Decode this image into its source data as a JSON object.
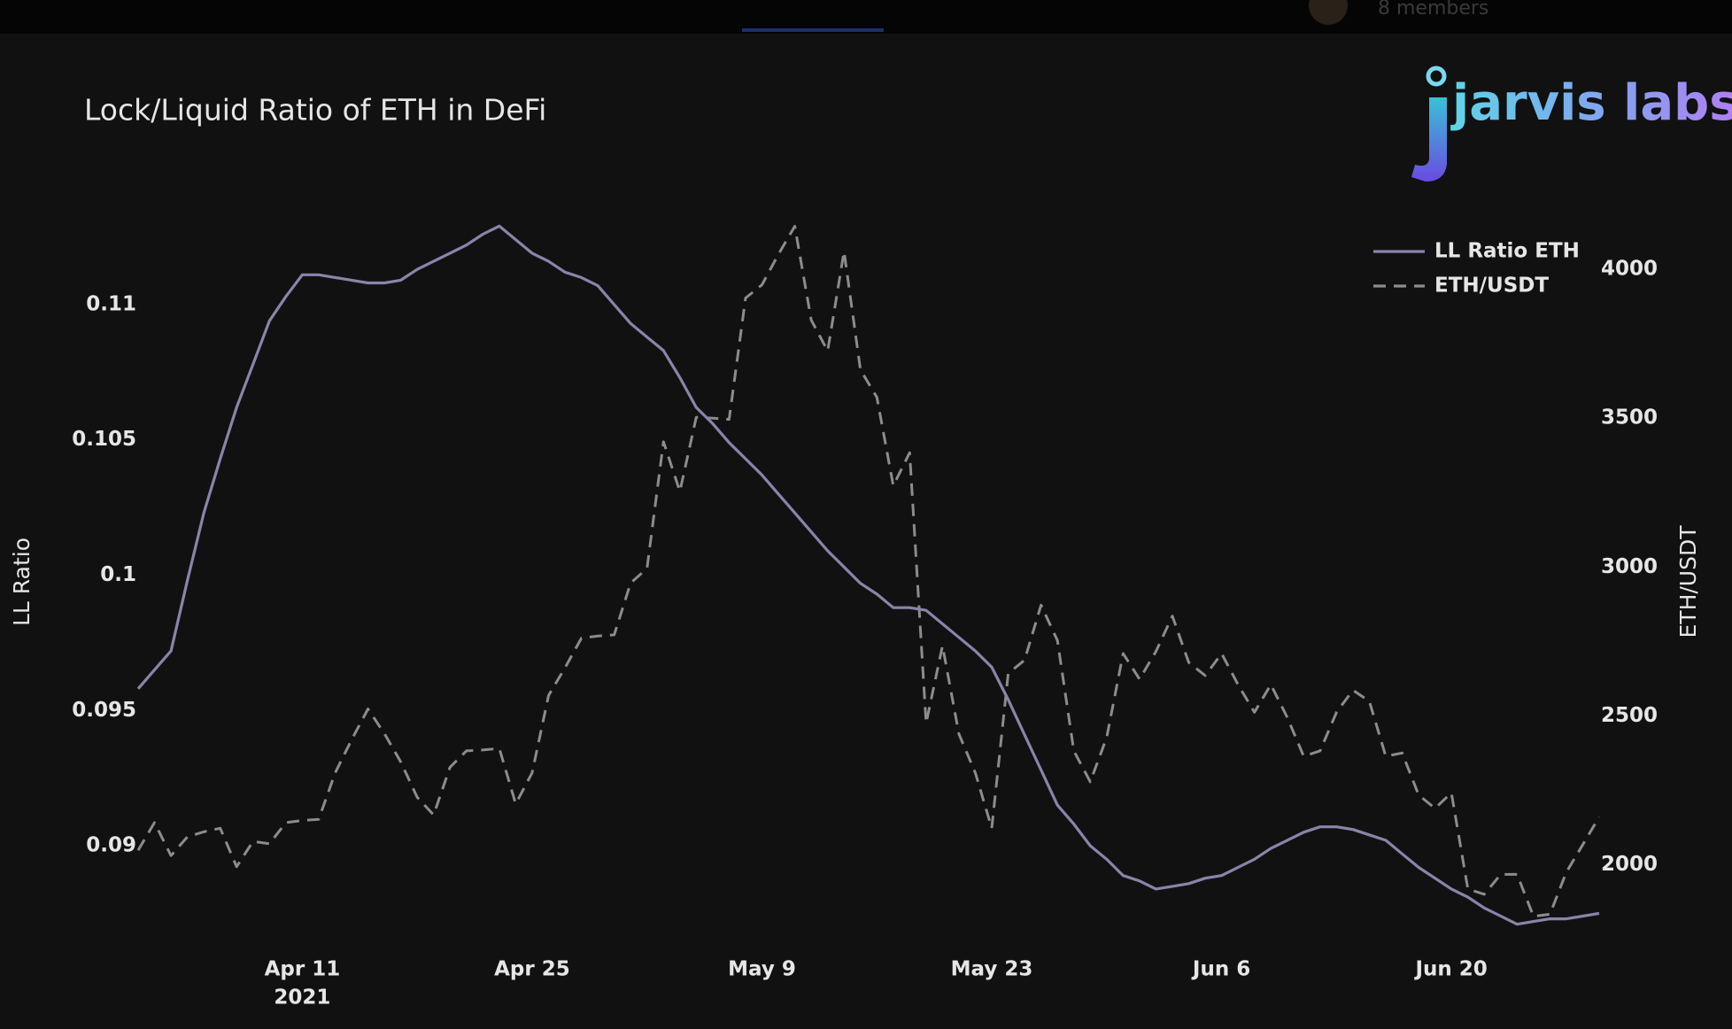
{
  "top_bar": {
    "members": "8 members"
  },
  "logo": "jarvis labs",
  "chart_data": {
    "type": "line",
    "title": "Lock/Liquid Ratio of ETH in DeFi",
    "y_label": "LL Ratio",
    "y2_label": "ETH/USDT",
    "x_year_label": "2021",
    "legend": "top-right",
    "x": [
      "2021-04-01",
      "2021-04-02",
      "2021-04-03",
      "2021-04-04",
      "2021-04-05",
      "2021-04-06",
      "2021-04-07",
      "2021-04-08",
      "2021-04-09",
      "2021-04-10",
      "2021-04-11",
      "2021-04-12",
      "2021-04-13",
      "2021-04-14",
      "2021-04-15",
      "2021-04-16",
      "2021-04-17",
      "2021-04-18",
      "2021-04-19",
      "2021-04-20",
      "2021-04-21",
      "2021-04-22",
      "2021-04-23",
      "2021-04-24",
      "2021-04-25",
      "2021-04-26",
      "2021-04-27",
      "2021-04-28",
      "2021-04-29",
      "2021-04-30",
      "2021-05-01",
      "2021-05-02",
      "2021-05-03",
      "2021-05-04",
      "2021-05-05",
      "2021-05-06",
      "2021-05-07",
      "2021-05-08",
      "2021-05-09",
      "2021-05-10",
      "2021-05-11",
      "2021-05-12",
      "2021-05-13",
      "2021-05-14",
      "2021-05-15",
      "2021-05-16",
      "2021-05-17",
      "2021-05-18",
      "2021-05-19",
      "2021-05-20",
      "2021-05-21",
      "2021-05-22",
      "2021-05-23",
      "2021-05-24",
      "2021-05-25",
      "2021-05-26",
      "2021-05-27",
      "2021-05-28",
      "2021-05-29",
      "2021-05-30",
      "2021-05-31",
      "2021-06-01",
      "2021-06-02",
      "2021-06-03",
      "2021-06-04",
      "2021-06-05",
      "2021-06-06",
      "2021-06-07",
      "2021-06-08",
      "2021-06-09",
      "2021-06-10",
      "2021-06-11",
      "2021-06-12",
      "2021-06-13",
      "2021-06-14",
      "2021-06-15",
      "2021-06-16",
      "2021-06-17",
      "2021-06-18",
      "2021-06-19",
      "2021-06-20",
      "2021-06-21",
      "2021-06-22",
      "2021-06-23",
      "2021-06-24",
      "2021-06-25",
      "2021-06-26",
      "2021-06-27",
      "2021-06-28",
      "2021-06-29"
    ],
    "xlim": [
      "2021-04-01",
      "2021-06-29"
    ],
    "xticks": [
      {
        "value": "2021-04-11",
        "label": "Apr 11"
      },
      {
        "value": "2021-04-25",
        "label": "Apr 25"
      },
      {
        "value": "2021-05-09",
        "label": "May 9"
      },
      {
        "value": "2021-05-23",
        "label": "May 23"
      },
      {
        "value": "2021-06-06",
        "label": "Jun 6"
      },
      {
        "value": "2021-06-20",
        "label": "Jun 20"
      }
    ],
    "ylim": [
      0.0865,
      0.1135
    ],
    "yticks": [
      0.09,
      0.095,
      0.1,
      0.105,
      0.11
    ],
    "y2lim": [
      1745,
      4200
    ],
    "y2ticks": [
      2000,
      2500,
      3000,
      3500,
      4000
    ],
    "series": [
      {
        "name": "LL Ratio ETH",
        "color": "#8a84aa",
        "dash": false,
        "values": [
          0.0958,
          0.0965,
          0.0972,
          0.0998,
          0.1023,
          0.1043,
          0.1062,
          0.1078,
          0.1094,
          0.1103,
          0.1111,
          0.1111,
          0.111,
          0.1109,
          0.1108,
          0.1108,
          0.1109,
          0.1113,
          0.1116,
          0.1119,
          0.1122,
          0.1126,
          0.1129,
          0.1124,
          0.1119,
          0.1116,
          0.1112,
          0.111,
          0.1107,
          0.11,
          0.1093,
          0.1088,
          0.1083,
          0.1073,
          0.1062,
          0.1056,
          0.1049,
          0.1043,
          0.1037,
          0.103,
          0.1023,
          0.1016,
          0.1009,
          0.1003,
          0.0997,
          0.0993,
          0.0988,
          0.0988,
          0.0987,
          0.0982,
          0.0977,
          0.0972,
          0.0966,
          0.0954,
          0.0941,
          0.0928,
          0.0915,
          0.0908,
          0.09,
          0.0895,
          0.0889,
          0.0887,
          0.0884,
          0.0885,
          0.0886,
          0.0888,
          0.0889,
          0.0892,
          0.0895,
          0.0899,
          0.0902,
          0.0905,
          0.0907,
          0.0907,
          0.0906,
          0.0904,
          0.0902,
          0.0897,
          0.0892,
          0.0888,
          0.0884,
          0.0881,
          0.0877,
          0.0874,
          0.0871,
          0.0872,
          0.0873,
          0.0873,
          0.0874,
          0.0875
        ]
      },
      {
        "name": "ETH/USDT",
        "color": "#8c8c8c",
        "dash": true,
        "axis": "y2",
        "values": [
          2048,
          2141,
          2030,
          2093,
          2110,
          2122,
          1993,
          2078,
          2070,
          2141,
          2148,
          2152,
          2308,
          2419,
          2523,
          2440,
          2345,
          2226,
          2167,
          2327,
          2382,
          2385,
          2390,
          2204,
          2308,
          2568,
          2661,
          2761,
          2768,
          2772,
          2946,
          2995,
          3421,
          3254,
          3503,
          3500,
          3496,
          3904,
          3948,
          4050,
          4145,
          3830,
          3726,
          4060,
          3663,
          3570,
          3273,
          3384,
          2475,
          2735,
          2438,
          2308,
          2122,
          2642,
          2687,
          2872,
          2753,
          2382,
          2278,
          2427,
          2709,
          2623,
          2716,
          2835,
          2679,
          2635,
          2709,
          2605,
          2512,
          2605,
          2494,
          2364,
          2382,
          2512,
          2586,
          2549,
          2364,
          2375,
          2234,
          2189,
          2241,
          1918,
          1900,
          1967,
          1967,
          1826,
          1833,
          1974,
          2067,
          2160
        ]
      }
    ]
  }
}
